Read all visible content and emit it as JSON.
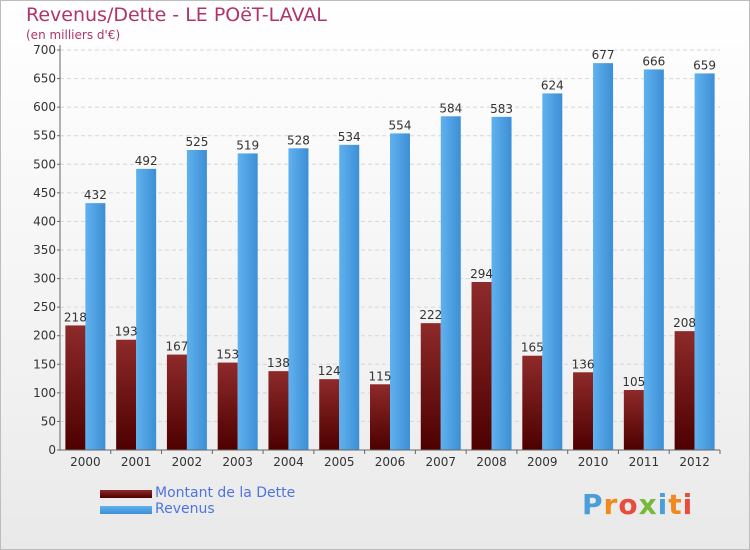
{
  "title": "Revenus/Dette - LE POëT-LAVAL",
  "subtitle": "(en milliers d'€)",
  "logo": {
    "letters": [
      {
        "ch": "P",
        "color": "#4a9fd8"
      },
      {
        "ch": "r",
        "color": "#f08a1c"
      },
      {
        "ch": "o",
        "color": "#e84c3d"
      },
      {
        "ch": "x",
        "color": "#79b93a"
      },
      {
        "ch": "i",
        "color": "#4a9fd8"
      },
      {
        "ch": "t",
        "color": "#f08a1c"
      },
      {
        "ch": "i",
        "color": "#e84c3d"
      }
    ]
  },
  "chart_data": {
    "type": "bar",
    "categories": [
      "2000",
      "2001",
      "2002",
      "2003",
      "2004",
      "2005",
      "2006",
      "2007",
      "2008",
      "2009",
      "2010",
      "2011",
      "2012"
    ],
    "series": [
      {
        "name": "Montant de la Dette",
        "color": "#7a1515",
        "values": [
          218,
          193,
          167,
          153,
          138,
          124,
          115,
          222,
          294,
          165,
          136,
          105,
          208
        ]
      },
      {
        "name": "Revenus",
        "color": "#4aa3e6",
        "values": [
          432,
          492,
          525,
          519,
          528,
          534,
          554,
          584,
          583,
          624,
          677,
          666,
          659
        ]
      }
    ],
    "yticks": [
      "0",
      "50",
      "100",
      "150",
      "200",
      "250",
      "300",
      "350",
      "400",
      "450",
      "500",
      "550",
      "600",
      "650",
      "700"
    ],
    "ylim": [
      0,
      700
    ],
    "grid": true,
    "legend": "bottom-left"
  }
}
